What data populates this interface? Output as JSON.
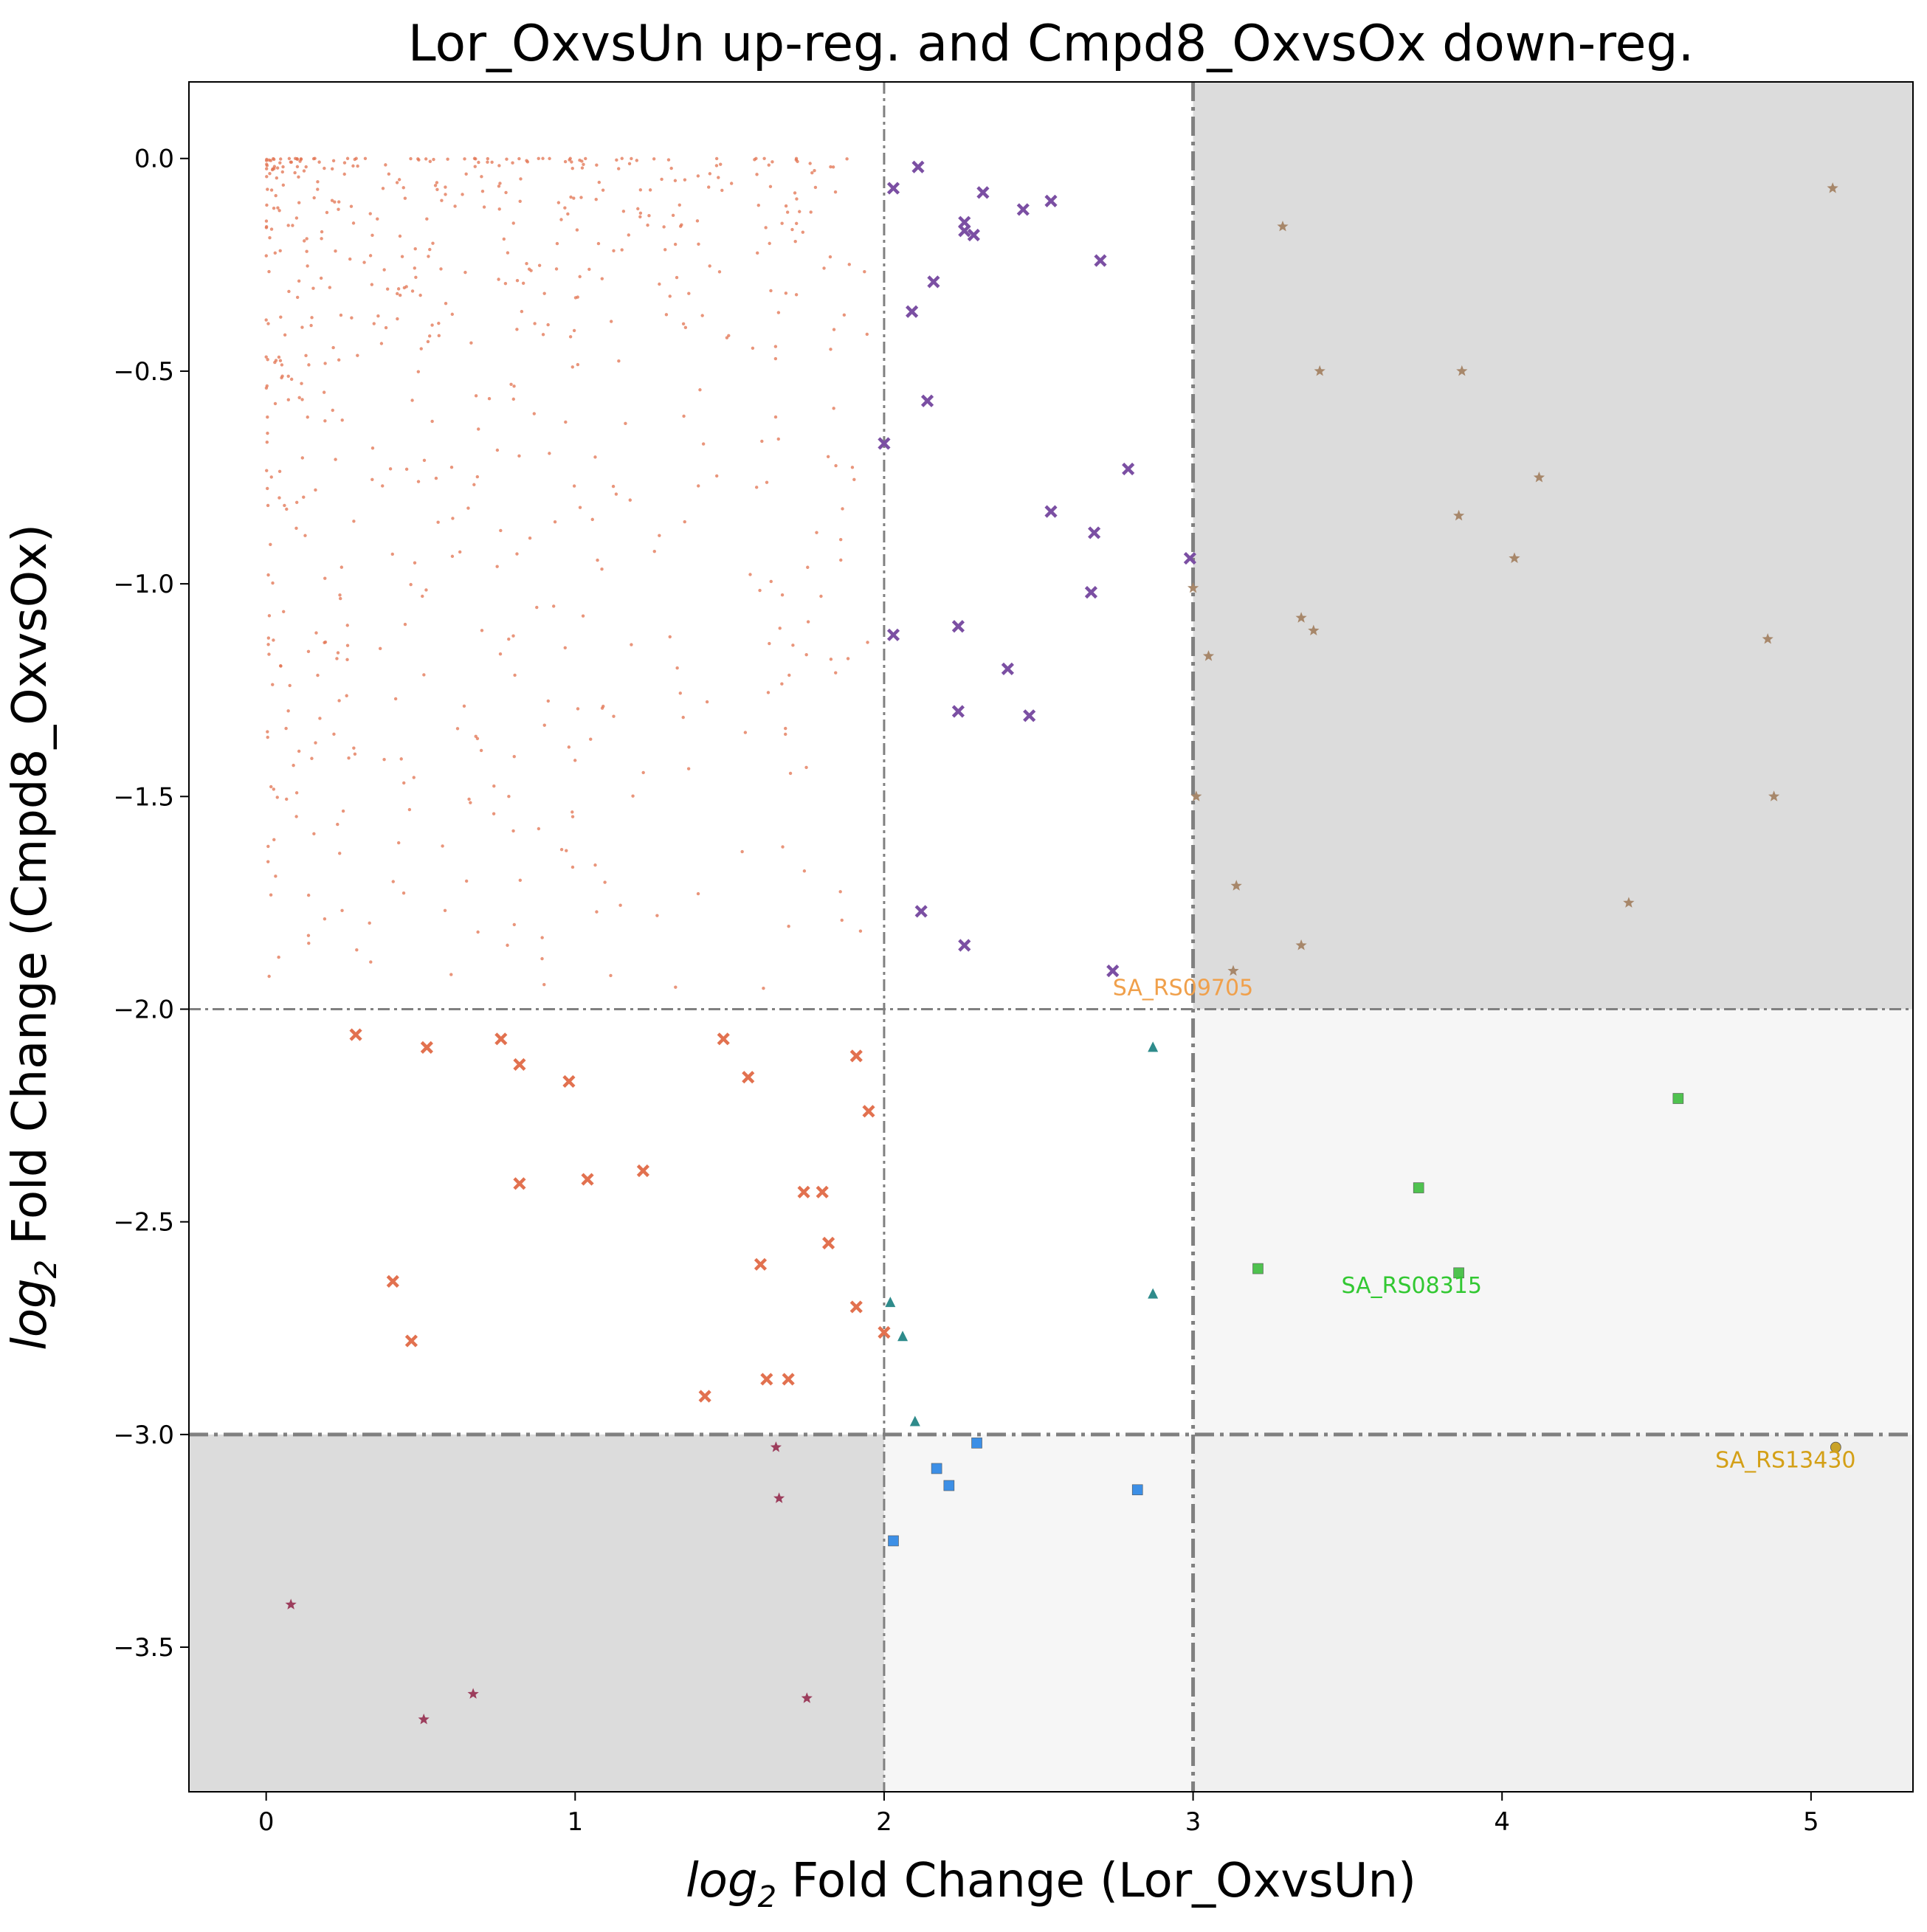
{
  "chart_data": {
    "type": "scatter",
    "title": "Lor_OxvsUn up-reg. and Cmpd8_OxvsOx down-reg.",
    "xlabel": {
      "prefix": "log",
      "sub": "2",
      "rest": " Fold Change (Lor_OxvsUn)"
    },
    "ylabel": {
      "prefix": "log",
      "sub": "2",
      "rest": " Fold Change (Cmpd8_OxvsOx)"
    },
    "xlim": [
      -0.25,
      5.33
    ],
    "ylim": [
      -3.84,
      0.18
    ],
    "xticks": [
      0,
      1,
      2,
      3,
      4,
      5
    ],
    "xtick_labels": [
      "0",
      "1",
      "2",
      "3",
      "4",
      "5"
    ],
    "yticks": [
      0.0,
      -0.5,
      -1.0,
      -1.5,
      -2.0,
      -2.5,
      -3.0,
      -3.5
    ],
    "ytick_labels": [
      "0.0",
      "−0.5",
      "−1.0",
      "−1.5",
      "−2.0",
      "−2.5",
      "−3.0",
      "−3.5"
    ],
    "grid": false,
    "shaded_regions": [
      {
        "x": [
          3,
          5.33
        ],
        "y": [
          -2,
          0.18
        ],
        "color": "#dcdcdc"
      },
      {
        "x": [
          -0.25,
          2
        ],
        "y": [
          -3.84,
          -3
        ],
        "color": "#dcdcdc"
      },
      {
        "x": [
          3,
          5.33
        ],
        "y": [
          -3,
          -2
        ],
        "color": "#f6f6f6"
      },
      {
        "x": [
          2,
          3
        ],
        "y": [
          -3.84,
          -3
        ],
        "color": "#f6f6f6"
      },
      {
        "x": [
          3,
          5.33
        ],
        "y": [
          -3.84,
          -3
        ],
        "color": "#f0f0f0"
      }
    ],
    "reference_lines": [
      {
        "axis": "x",
        "value": 2,
        "style": "thin"
      },
      {
        "axis": "x",
        "value": 3,
        "style": "thick"
      },
      {
        "axis": "y",
        "value": -2,
        "style": "thin"
      },
      {
        "axis": "y",
        "value": -3,
        "style": "thick"
      }
    ],
    "series": [
      {
        "marker": "x",
        "color": "#7b4fa3",
        "points": [
          [
            2.03,
            -0.07
          ],
          [
            2.11,
            -0.02
          ],
          [
            2.26,
            -0.15
          ],
          [
            2.26,
            -0.17
          ],
          [
            2.29,
            -0.18
          ],
          [
            2.32,
            -0.08
          ],
          [
            2.45,
            -0.12
          ],
          [
            2.54,
            -0.1
          ],
          [
            2.16,
            -0.29
          ],
          [
            2.7,
            -0.24
          ],
          [
            2.09,
            -0.36
          ],
          [
            2.14,
            -0.57
          ],
          [
            2.0,
            -0.67
          ],
          [
            2.79,
            -0.73
          ],
          [
            2.54,
            -0.83
          ],
          [
            2.68,
            -0.88
          ],
          [
            2.99,
            -0.94
          ],
          [
            2.67,
            -1.02
          ],
          [
            2.03,
            -1.12
          ],
          [
            2.24,
            -1.1
          ],
          [
            2.4,
            -1.2
          ],
          [
            2.24,
            -1.3
          ],
          [
            2.47,
            -1.31
          ],
          [
            2.12,
            -1.77
          ],
          [
            2.26,
            -1.85
          ],
          [
            2.74,
            -1.91
          ]
        ]
      },
      {
        "marker": "x",
        "color": "#e2714f",
        "points": [
          [
            0.29,
            -2.06
          ],
          [
            0.52,
            -2.09
          ],
          [
            0.76,
            -2.07
          ],
          [
            0.82,
            -2.13
          ],
          [
            0.98,
            -2.17
          ],
          [
            1.48,
            -2.07
          ],
          [
            1.56,
            -2.16
          ],
          [
            1.91,
            -2.11
          ],
          [
            1.95,
            -2.24
          ],
          [
            0.82,
            -2.41
          ],
          [
            1.04,
            -2.4
          ],
          [
            1.22,
            -2.38
          ],
          [
            1.74,
            -2.43
          ],
          [
            1.8,
            -2.43
          ],
          [
            1.82,
            -2.55
          ],
          [
            1.6,
            -2.6
          ],
          [
            0.41,
            -2.64
          ],
          [
            1.91,
            -2.7
          ],
          [
            2.0,
            -2.76
          ],
          [
            0.47,
            -2.78
          ],
          [
            1.62,
            -2.87
          ],
          [
            1.69,
            -2.87
          ],
          [
            1.42,
            -2.91
          ]
        ]
      },
      {
        "marker": "star",
        "color": "#a7876a",
        "points": [
          [
            5.07,
            -0.07
          ],
          [
            3.29,
            -0.16
          ],
          [
            3.41,
            -0.5
          ],
          [
            3.87,
            -0.5
          ],
          [
            4.12,
            -0.75
          ],
          [
            3.86,
            -0.84
          ],
          [
            4.04,
            -0.94
          ],
          [
            3.0,
            -1.01
          ],
          [
            3.35,
            -1.08
          ],
          [
            3.39,
            -1.11
          ],
          [
            4.86,
            -1.13
          ],
          [
            3.05,
            -1.17
          ],
          [
            3.01,
            -1.5
          ],
          [
            4.88,
            -1.5
          ],
          [
            3.14,
            -1.71
          ],
          [
            4.41,
            -1.75
          ],
          [
            3.35,
            -1.85
          ],
          [
            3.13,
            -1.91
          ]
        ]
      },
      {
        "marker": "star",
        "color": "#9c3d5c",
        "points": [
          [
            1.65,
            -3.03
          ],
          [
            1.66,
            -3.15
          ],
          [
            0.08,
            -3.4
          ],
          [
            0.67,
            -3.61
          ],
          [
            1.75,
            -3.62
          ],
          [
            0.51,
            -3.67
          ]
        ]
      },
      {
        "marker": "triangle",
        "color": "#2e8b8b",
        "points": [
          [
            2.87,
            -2.09
          ],
          [
            2.02,
            -2.69
          ],
          [
            2.87,
            -2.67
          ],
          [
            2.06,
            -2.77
          ],
          [
            2.1,
            -2.97
          ]
        ]
      },
      {
        "marker": "square",
        "color": "#3c8fe6",
        "points": [
          [
            2.3,
            -3.02
          ],
          [
            2.17,
            -3.08
          ],
          [
            2.21,
            -3.12
          ],
          [
            2.82,
            -3.13
          ],
          [
            2.03,
            -3.25
          ]
        ]
      },
      {
        "marker": "square",
        "color": "#4fc24f",
        "points": [
          [
            4.57,
            -2.21
          ],
          [
            3.73,
            -2.42
          ],
          [
            3.21,
            -2.61
          ],
          [
            3.86,
            -2.62
          ]
        ]
      },
      {
        "marker": "circle",
        "color": "#c9a227",
        "points": [
          [
            5.08,
            -3.03
          ]
        ]
      }
    ],
    "background_cloud": {
      "marker": "dot",
      "color": "#e2714f",
      "count": 640,
      "x_range": [
        0.0,
        2.0
      ],
      "y_range": [
        -2.0,
        0.0
      ]
    },
    "annotations": [
      {
        "text": "SA_RS09705",
        "x": 2.74,
        "y": -1.95,
        "color": "#f0a04b"
      },
      {
        "text": "SA_RS08315",
        "x": 3.48,
        "y": -2.65,
        "color": "#32c832"
      },
      {
        "text": "SA_RS13430",
        "x": 4.69,
        "y": -3.06,
        "color": "#d4a017"
      }
    ]
  }
}
